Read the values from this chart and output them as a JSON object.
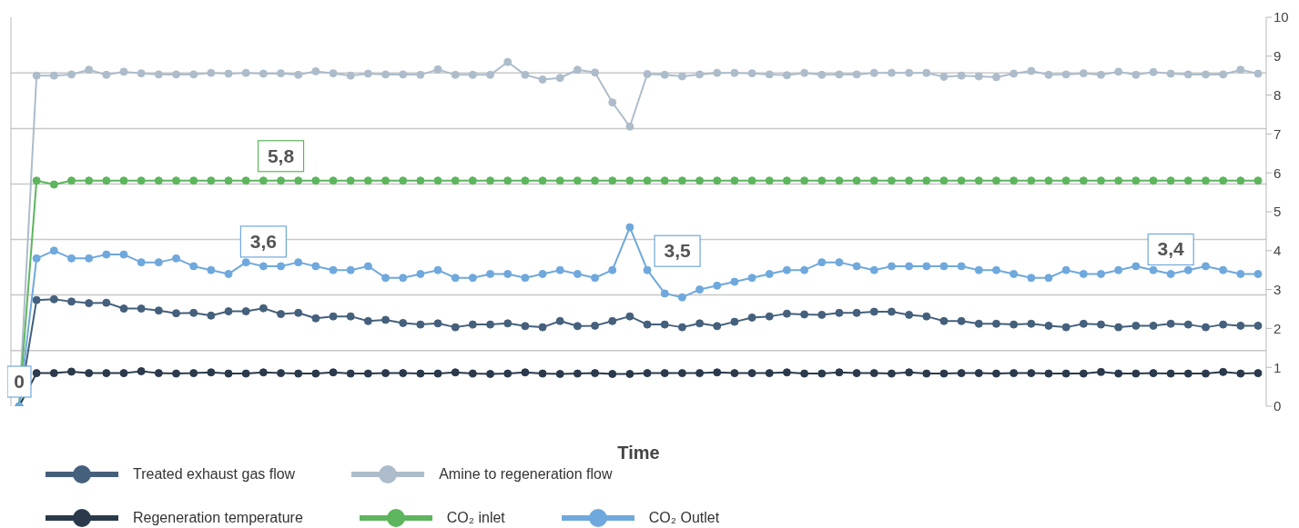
{
  "chart_data": {
    "type": "line",
    "xlabel": "Time",
    "categories": [
      null,
      null,
      null,
      null,
      null,
      null,
      null,
      null,
      null,
      null,
      null,
      null,
      null,
      null,
      null,
      null,
      null,
      null,
      null,
      null,
      null,
      null,
      null,
      null,
      null,
      null,
      null,
      null,
      null,
      null,
      null,
      null,
      null,
      null,
      null,
      null,
      null,
      null,
      null,
      null,
      null,
      null,
      null,
      null,
      null,
      null,
      null,
      null,
      null,
      null,
      null,
      null,
      null,
      null,
      null,
      null,
      null,
      null,
      null,
      null,
      null,
      null,
      null,
      null,
      null,
      null,
      null,
      null,
      null,
      null,
      null,
      null
    ],
    "ylim": [
      0,
      10
    ],
    "yticks": [
      0,
      1,
      2,
      3,
      4,
      5,
      6,
      7,
      8,
      9,
      10
    ],
    "ref_lines": [
      {
        "axis": "y",
        "value": 1.43,
        "color": "#c8c8c8"
      },
      {
        "axis": "y",
        "value": 2.86,
        "color": "#c8c8c8"
      },
      {
        "axis": "y",
        "value": 4.29,
        "color": "#c8c8c8"
      },
      {
        "axis": "y",
        "value": 5.71,
        "color": "#c8c8c8"
      },
      {
        "axis": "y",
        "value": 7.14,
        "color": "#c8c8c8"
      },
      {
        "axis": "y",
        "value": 8.57,
        "color": "#c8c8c8"
      }
    ],
    "legend": "bottom",
    "marker": "circle",
    "line_style": "solid",
    "series": [
      {
        "name": "Treated exhaust gas flow",
        "color": "#44607c",
        "values": [
          0,
          2.73,
          2.75,
          2.69,
          2.65,
          2.66,
          2.51,
          2.51,
          2.46,
          2.39,
          2.4,
          2.33,
          2.44,
          2.44,
          2.52,
          2.37,
          2.4,
          2.26,
          2.31,
          2.31,
          2.19,
          2.22,
          2.14,
          2.1,
          2.13,
          2.03,
          2.1,
          2.1,
          2.13,
          2.06,
          2.03,
          2.19,
          2.06,
          2.07,
          2.19,
          2.31,
          2.1,
          2.1,
          2.03,
          2.13,
          2.06,
          2.17,
          2.28,
          2.31,
          2.38,
          2.36,
          2.35,
          2.4,
          2.4,
          2.43,
          2.43,
          2.35,
          2.31,
          2.19,
          2.19,
          2.12,
          2.12,
          2.1,
          2.12,
          2.07,
          2.03,
          2.12,
          2.1,
          2.03,
          2.07,
          2.07,
          2.12,
          2.1,
          2.03,
          2.1,
          2.07,
          2.07
        ]
      },
      {
        "name": "Amine to regeneration flow",
        "color": "#adbccb",
        "values": [
          0,
          8.5,
          8.5,
          8.53,
          8.65,
          8.52,
          8.6,
          8.56,
          8.53,
          8.53,
          8.53,
          8.57,
          8.55,
          8.57,
          8.55,
          8.56,
          8.52,
          8.61,
          8.56,
          8.5,
          8.55,
          8.53,
          8.53,
          8.52,
          8.66,
          8.52,
          8.52,
          8.52,
          8.85,
          8.52,
          8.4,
          8.44,
          8.65,
          8.58,
          7.81,
          7.19,
          8.54,
          8.52,
          8.48,
          8.53,
          8.57,
          8.57,
          8.56,
          8.53,
          8.51,
          8.57,
          8.52,
          8.53,
          8.53,
          8.57,
          8.57,
          8.57,
          8.57,
          8.47,
          8.5,
          8.48,
          8.46,
          8.55,
          8.62,
          8.52,
          8.53,
          8.56,
          8.52,
          8.6,
          8.52,
          8.59,
          8.55,
          8.53,
          8.53,
          8.53,
          8.65,
          8.55
        ]
      },
      {
        "name": "Regeneration temperature",
        "color": "#2a3a4c",
        "values": [
          0,
          0.85,
          0.85,
          0.89,
          0.85,
          0.85,
          0.85,
          0.9,
          0.85,
          0.84,
          0.85,
          0.87,
          0.84,
          0.84,
          0.87,
          0.85,
          0.84,
          0.84,
          0.87,
          0.84,
          0.84,
          0.85,
          0.85,
          0.84,
          0.84,
          0.87,
          0.84,
          0.83,
          0.84,
          0.87,
          0.84,
          0.83,
          0.84,
          0.85,
          0.83,
          0.83,
          0.85,
          0.85,
          0.85,
          0.85,
          0.87,
          0.85,
          0.85,
          0.85,
          0.87,
          0.84,
          0.84,
          0.87,
          0.85,
          0.85,
          0.84,
          0.87,
          0.84,
          0.84,
          0.85,
          0.85,
          0.84,
          0.85,
          0.85,
          0.84,
          0.84,
          0.84,
          0.88,
          0.84,
          0.84,
          0.85,
          0.84,
          0.84,
          0.84,
          0.88,
          0.84,
          0.85
        ]
      },
      {
        "name": "CO₂ inlet",
        "color": "#5db55d",
        "values": [
          0,
          5.8,
          5.7,
          5.8,
          5.8,
          5.8,
          5.8,
          5.8,
          5.8,
          5.8,
          5.8,
          5.8,
          5.8,
          5.8,
          5.8,
          5.8,
          5.8,
          5.8,
          5.8,
          5.8,
          5.8,
          5.8,
          5.8,
          5.8,
          5.8,
          5.8,
          5.8,
          5.8,
          5.8,
          5.8,
          5.8,
          5.8,
          5.8,
          5.8,
          5.8,
          5.8,
          5.8,
          5.8,
          5.8,
          5.8,
          5.8,
          5.8,
          5.8,
          5.8,
          5.8,
          5.8,
          5.8,
          5.8,
          5.8,
          5.8,
          5.8,
          5.8,
          5.8,
          5.8,
          5.8,
          5.8,
          5.8,
          5.8,
          5.8,
          5.8,
          5.8,
          5.8,
          5.8,
          5.8,
          5.8,
          5.8,
          5.8,
          5.8,
          5.8,
          5.8,
          5.8,
          5.8
        ],
        "value_labels": [
          null,
          null,
          null,
          null,
          null,
          null,
          null,
          null,
          null,
          null,
          null,
          null,
          null,
          null,
          null,
          "5,8",
          null,
          null,
          null,
          null,
          null,
          null,
          null,
          null,
          null,
          null,
          null,
          null,
          null,
          null,
          null,
          null,
          null,
          null,
          null,
          null,
          null,
          null,
          null,
          null,
          null,
          null,
          null,
          null,
          null,
          null,
          null,
          null,
          null,
          null,
          null,
          null,
          null,
          null,
          null,
          null,
          null,
          null,
          null,
          null,
          null,
          null,
          null,
          null,
          null,
          null,
          null,
          null,
          null,
          null,
          null,
          null
        ]
      },
      {
        "name": "CO₂ Outlet",
        "color": "#6fa8dc",
        "values": [
          0,
          3.8,
          4.0,
          3.8,
          3.8,
          3.9,
          3.9,
          3.7,
          3.7,
          3.8,
          3.6,
          3.5,
          3.4,
          3.7,
          3.6,
          3.6,
          3.7,
          3.6,
          3.5,
          3.5,
          3.6,
          3.3,
          3.3,
          3.4,
          3.5,
          3.3,
          3.3,
          3.4,
          3.4,
          3.3,
          3.4,
          3.5,
          3.4,
          3.3,
          3.5,
          4.6,
          3.5,
          2.9,
          2.8,
          3.0,
          3.1,
          3.2,
          3.3,
          3.4,
          3.5,
          3.5,
          3.7,
          3.7,
          3.6,
          3.5,
          3.6,
          3.6,
          3.6,
          3.6,
          3.6,
          3.5,
          3.5,
          3.4,
          3.3,
          3.3,
          3.5,
          3.4,
          3.4,
          3.5,
          3.6,
          3.5,
          3.4,
          3.5,
          3.6,
          3.5,
          3.4,
          3.4
        ],
        "value_labels": [
          "0",
          null,
          null,
          null,
          null,
          null,
          null,
          null,
          null,
          null,
          null,
          null,
          null,
          null,
          "3,6",
          null,
          null,
          null,
          null,
          null,
          null,
          null,
          null,
          null,
          null,
          null,
          null,
          null,
          null,
          null,
          null,
          null,
          null,
          null,
          null,
          null,
          "3,5",
          null,
          null,
          null,
          null,
          null,
          null,
          null,
          null,
          null,
          null,
          null,
          null,
          null,
          null,
          null,
          null,
          null,
          null,
          null,
          null,
          null,
          null,
          null,
          null,
          null,
          null,
          null,
          null,
          null,
          "3,4",
          null,
          null,
          null,
          null,
          null
        ]
      }
    ]
  }
}
